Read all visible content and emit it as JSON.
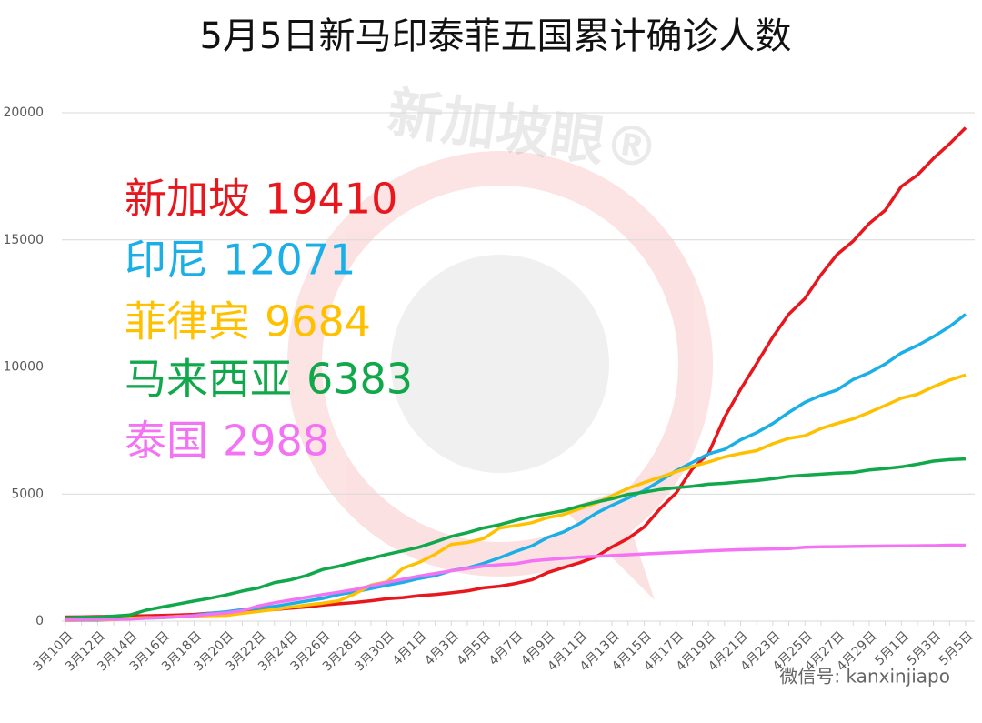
{
  "chart_data": {
    "type": "line",
    "title": "5月5日新马印泰菲五国累计确诊人数",
    "watermark": "新加坡眼®",
    "source": "微信号: kanxinjiapo",
    "categories": [
      "3月10日",
      null,
      "3月12日",
      null,
      "3月14日",
      null,
      "3月16日",
      null,
      "3月18日",
      null,
      "3月20日",
      null,
      "3月22日",
      null,
      "3月24日",
      null,
      "3月26日",
      null,
      "3月28日",
      null,
      "3月30日",
      null,
      "4月1日",
      null,
      "4月3日",
      null,
      "4月5日",
      null,
      "4月7日",
      null,
      "4月9日",
      null,
      "4月11日",
      null,
      "4月13日",
      null,
      "4月15日",
      null,
      "4月17日",
      null,
      "4月19日",
      null,
      "4月21日",
      null,
      "4月23日",
      null,
      "4月25日",
      null,
      "4月27日",
      null,
      "4月29日",
      null,
      "5月1日",
      null,
      "5月3日",
      null,
      "5月5日"
    ],
    "series": [
      {
        "name": "新加坡",
        "color": "#e8161d",
        "values": [
          160,
          166,
          178,
          187,
          200,
          212,
          226,
          243,
          266,
          313,
          345,
          385,
          432,
          455,
          509,
          558,
          631,
          683,
          732,
          802,
          879,
          926,
          1000,
          1049,
          1114,
          1189,
          1309,
          1375,
          1481,
          1623,
          1910,
          2108,
          2299,
          2532,
          2918,
          3252,
          3699,
          4427,
          5050,
          5992,
          6588,
          8014,
          9125,
          10141,
          11178,
          12075,
          12693,
          13624,
          14423,
          14951,
          15641,
          16169,
          17101,
          17548,
          18205,
          18778,
          19410
        ]
      },
      {
        "name": "印尼",
        "color": "#1aafe6",
        "values": [
          27,
          34,
          34,
          69,
          96,
          117,
          134,
          172,
          227,
          309,
          369,
          450,
          514,
          579,
          686,
          790,
          893,
          1046,
          1155,
          1285,
          1414,
          1528,
          1677,
          1790,
          1986,
          2092,
          2273,
          2491,
          2738,
          2956,
          3293,
          3512,
          3842,
          4241,
          4557,
          4839,
          5136,
          5516,
          5923,
          6248,
          6575,
          6760,
          7135,
          7418,
          7775,
          8211,
          8607,
          8882,
          9096,
          9511,
          9771,
          10118,
          10551,
          10843,
          11192,
          11587,
          12071
        ]
      },
      {
        "name": "菲律宾",
        "color": "#ffc000",
        "values": [
          33,
          49,
          52,
          64,
          111,
          140,
          142,
          187,
          202,
          217,
          230,
          307,
          380,
          462,
          552,
          636,
          707,
          803,
          1075,
          1418,
          1546,
          2084,
          2311,
          2633,
          3018,
          3094,
          3246,
          3660,
          3764,
          3870,
          4076,
          4195,
          4428,
          4648,
          4932,
          5223,
          5453,
          5660,
          5878,
          6087,
          6259,
          6459,
          6599,
          6710,
          6981,
          7192,
          7294,
          7579,
          7777,
          7958,
          8212,
          8488,
          8772,
          8928,
          9223,
          9485,
          9684
        ]
      },
      {
        "name": "马来西亚",
        "color": "#10a84a",
        "values": [
          129,
          149,
          158,
          197,
          238,
          428,
          553,
          673,
          790,
          900,
          1030,
          1183,
          1306,
          1518,
          1624,
          1796,
          2031,
          2161,
          2320,
          2470,
          2626,
          2766,
          2908,
          3116,
          3333,
          3483,
          3662,
          3793,
          3963,
          4119,
          4228,
          4346,
          4530,
          4683,
          4817,
          4987,
          5072,
          5182,
          5251,
          5305,
          5389,
          5425,
          5482,
          5532,
          5603,
          5691,
          5742,
          5780,
          5820,
          5851,
          5945,
          6002,
          6071,
          6176,
          6298,
          6353,
          6383
        ]
      },
      {
        "name": "泰国",
        "color": "#f472f4",
        "values": [
          53,
          59,
          70,
          75,
          82,
          114,
          147,
          177,
          212,
          272,
          322,
          411,
          599,
          721,
          827,
          934,
          1045,
          1136,
          1245,
          1388,
          1524,
          1651,
          1771,
          1875,
          1978,
          2067,
          2169,
          2220,
          2258,
          2369,
          2423,
          2473,
          2518,
          2551,
          2579,
          2613,
          2643,
          2672,
          2700,
          2733,
          2765,
          2792,
          2811,
          2826,
          2839,
          2854,
          2907,
          2922,
          2931,
          2938,
          2947,
          2954,
          2960,
          2966,
          2969,
          2987,
          2988
        ]
      }
    ],
    "ylim": [
      0,
      20000
    ],
    "yticks": [
      0,
      5000,
      10000,
      15000,
      20000
    ],
    "grid": true
  }
}
